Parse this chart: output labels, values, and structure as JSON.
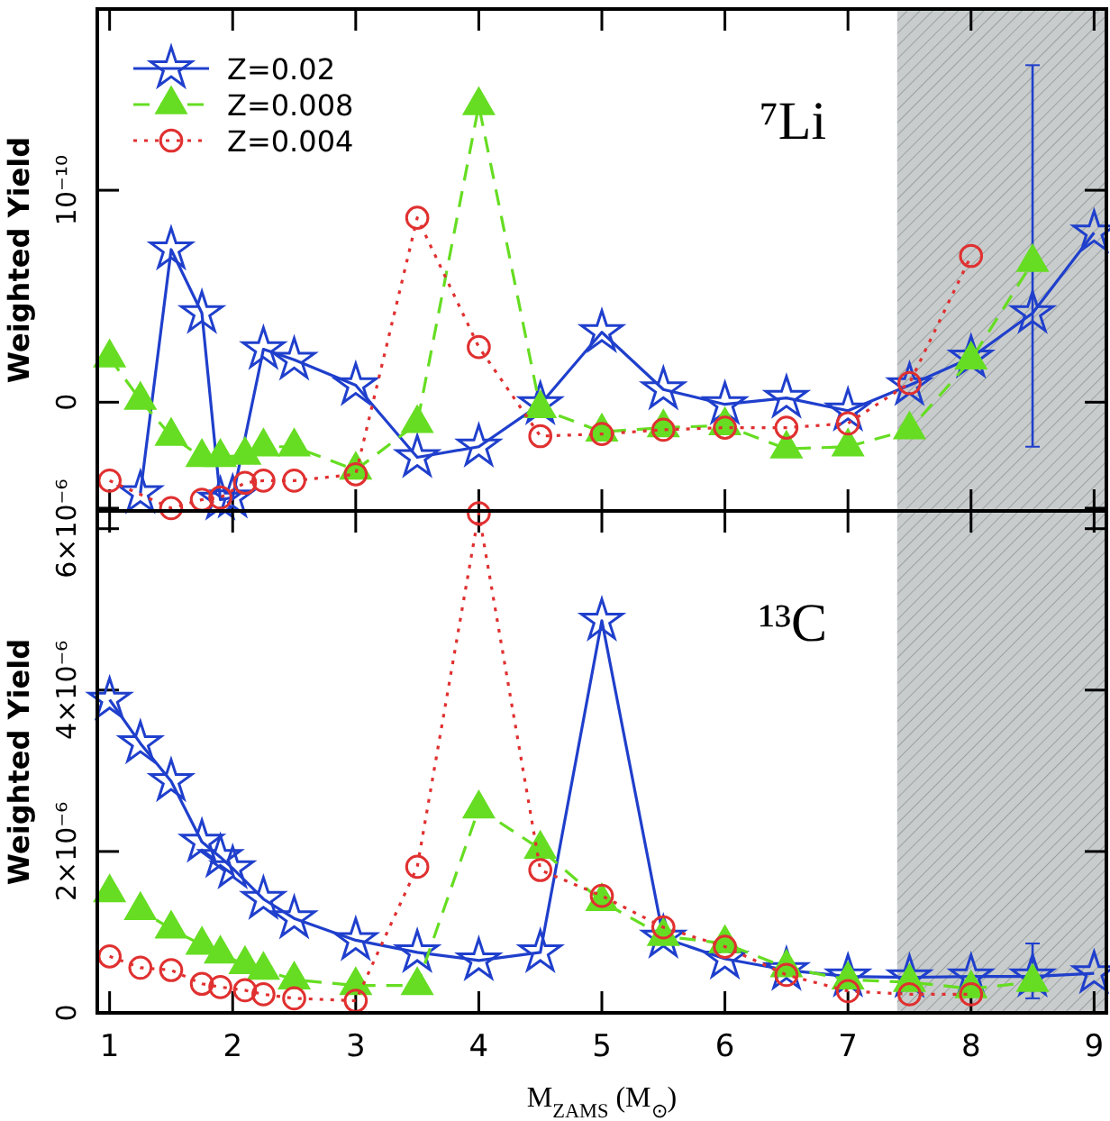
{
  "chart_data": [
    {
      "type": "line",
      "xlim": [
        0.9,
        9.1
      ],
      "xticks": [
        1,
        2,
        3,
        4,
        5,
        6,
        7,
        8,
        9
      ],
      "ylim": [
        -5.13e-11,
        1.855e-10
      ],
      "yticks": [
        {
          "value": -5e-11,
          "label": null
        },
        0,
        {
          "value": 1e-10,
          "label": "10⁻¹⁰"
        }
      ],
      "ylabel": "Weighted Yield",
      "tick_labels": "y",
      "legend": "top left",
      "annotations": [
        "⁷Li"
      ],
      "bands": [
        {
          "axis": "x",
          "from": 7.4,
          "to": 9.1,
          "color": "#c8cccc"
        }
      ],
      "series": [
        {
          "name": "Z=0.02",
          "color": "#1f3fcc",
          "marker": "star",
          "line_style": "solid",
          "x": [
            1.25,
            1.5,
            1.75,
            1.9,
            2,
            2.25,
            2.5,
            3,
            3.5,
            4,
            4.5,
            5,
            5.5,
            6,
            6.5,
            7,
            7.5,
            8,
            8.5,
            9
          ],
          "values": [
            -4.3e-11,
            7.2e-11,
            4.2e-11,
            -4.6e-11,
            -4.5e-11,
            2.5e-11,
            2e-11,
            8e-12,
            -2.6e-11,
            -2.1e-11,
            -1e-12,
            3.3e-11,
            6e-12,
            -1e-12,
            2e-12,
            -4e-12,
            8e-12,
            2.1e-11,
            4.2e-11,
            8e-11
          ],
          "errors": [
            null,
            null,
            null,
            null,
            null,
            null,
            null,
            null,
            null,
            null,
            null,
            null,
            null,
            null,
            null,
            null,
            null,
            null,
            [
              -2.1e-11,
              1.59e-10
            ],
            null
          ]
        },
        {
          "name": "Z=0.008",
          "color": "#66dd22",
          "marker": "triangle",
          "line_style": "dashed",
          "x": [
            1,
            1.25,
            1.5,
            1.75,
            1.9,
            2.1,
            2.25,
            2.5,
            3,
            3.5,
            4,
            4.5,
            5,
            5.5,
            6,
            6.5,
            7,
            7.5,
            8,
            8.5
          ],
          "values": [
            2.1e-11,
            1e-12,
            -1.6e-11,
            -2.6e-11,
            -2.6e-11,
            -2.5e-11,
            -2.1e-11,
            -2.1e-11,
            -3.2e-11,
            -1e-11,
            1.4e-10,
            -3e-12,
            -1.4e-11,
            -1.2e-11,
            -1.1e-11,
            -2.2e-11,
            -2.1e-11,
            -1.3e-11,
            2e-11,
            6.6e-11
          ]
        },
        {
          "name": "Z=0.004",
          "color": "#e03030",
          "marker": "circle",
          "line_style": "dotted",
          "x": [
            1,
            1.5,
            1.75,
            1.9,
            2.1,
            2.25,
            2.5,
            3,
            3.5,
            4,
            4.5,
            5,
            5.5,
            6,
            6.5,
            7,
            7.5,
            8
          ],
          "values": [
            -3.7e-11,
            -5e-11,
            -4.6e-11,
            -4.5e-11,
            -3.8e-11,
            -3.7e-11,
            -3.7e-11,
            -3.4e-11,
            8.7e-11,
            2.6e-11,
            -1.6e-11,
            -1.5e-11,
            -1.3e-11,
            -1.2e-11,
            -1.2e-11,
            -1e-11,
            9e-12,
            6.9e-11
          ]
        }
      ]
    },
    {
      "type": "line",
      "xlim": [
        0.9,
        9.1
      ],
      "xticks": [
        1,
        2,
        3,
        4,
        5,
        6,
        7,
        8,
        9
      ],
      "ylim": [
        0,
        6.22e-06
      ],
      "yticks": [
        0,
        {
          "value": 2e-06,
          "label": "2×10⁻⁶"
        },
        {
          "value": 4e-06,
          "label": "4×10⁻⁶"
        },
        {
          "value": 6e-06,
          "label": "6×10⁻⁶"
        }
      ],
      "ylabel": "Weighted Yield",
      "xlabel": "M$_{ZAMS}$ (M$_{⊙}$)",
      "annotations": [
        "¹³C"
      ],
      "bands": [
        {
          "axis": "x",
          "from": 7.4,
          "to": 9.1,
          "color": "#c8cccc"
        }
      ],
      "series": [
        {
          "color": "#1f3fcc",
          "marker": "star",
          "line_style": "solid",
          "x": [
            1,
            1.25,
            1.5,
            1.75,
            1.9,
            2,
            2.25,
            2.5,
            3,
            3.5,
            4,
            4.5,
            5,
            5.5,
            6,
            6.5,
            7,
            7.5,
            8,
            8.5,
            9
          ],
          "values": [
            3.88e-06,
            3.34e-06,
            2.87e-06,
            2.12e-06,
            1.93e-06,
            1.79e-06,
            1.41e-06,
            1.17e-06,
            9e-07,
            7.5e-07,
            6.5e-07,
            7.5e-07,
            4.86e-06,
            9.3e-07,
            6.7e-07,
            5.3e-07,
            4.5e-07,
            4.4e-07,
            4.5e-07,
            4.5e-07,
            4.9e-07
          ],
          "errors": [
            null,
            null,
            null,
            null,
            null,
            null,
            null,
            null,
            null,
            null,
            null,
            null,
            null,
            null,
            null,
            null,
            null,
            null,
            null,
            [
              1.8e-07,
              8.6e-07
            ],
            null
          ]
        },
        {
          "color": "#66dd22",
          "marker": "triangle",
          "line_style": "dashed",
          "x": [
            1,
            1.25,
            1.5,
            1.75,
            1.9,
            2.1,
            2.25,
            2.5,
            3,
            3.5,
            4,
            4.5,
            5,
            5.5,
            6,
            6.5,
            7,
            7.5,
            8,
            8.5
          ],
          "values": [
            1.49e-06,
            1.27e-06,
            1.04e-06,
            8.4e-07,
            7.3e-07,
            6e-07,
            5.3e-07,
            4.1e-07,
            3.4e-07,
            3.4e-07,
            2.53e-06,
            2.03e-06,
            1.38e-06,
            9.5e-07,
            8.6e-07,
            5.6e-07,
            4.1e-07,
            3.8e-07,
            3e-07,
            3.8e-07
          ]
        },
        {
          "color": "#e03030",
          "marker": "circle",
          "line_style": "dotted",
          "x": [
            1,
            1.25,
            1.5,
            1.75,
            1.9,
            2.1,
            2.25,
            2.5,
            3,
            3.5,
            4,
            4.5,
            5,
            5.5,
            6,
            6.5,
            7,
            7.5,
            8
          ],
          "values": [
            7e-07,
            5.6e-07,
            5.3e-07,
            3.6e-07,
            3.2e-07,
            2.8e-07,
            2.3e-07,
            1.8e-07,
            1.5e-07,
            1.81e-06,
            6.19e-06,
            1.77e-06,
            1.45e-06,
            1.06e-06,
            8.2e-07,
            4.7e-07,
            2.7e-07,
            2.3e-07,
            2.3e-07
          ]
        }
      ]
    }
  ]
}
